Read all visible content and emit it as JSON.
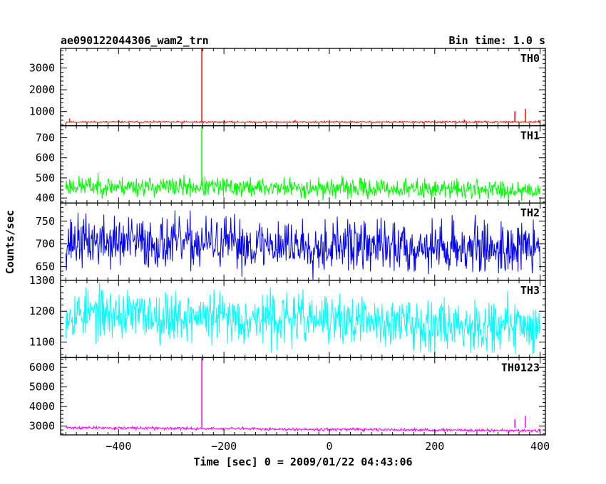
{
  "header": {
    "title": "ae090122044306_wam2_trn",
    "bin_time": "Bin time: 1.0 s"
  },
  "chart_data": {
    "type": "line",
    "shared_x": {
      "label": "Time [sec] 0 = 2009/01/22 04:43:06",
      "range": [
        -510,
        410
      ],
      "ticks": [
        -400,
        -200,
        0,
        200,
        400
      ],
      "tick_labels": [
        "−400",
        "−200",
        "0",
        "200",
        "400"
      ]
    },
    "ylabel": "Counts/sec",
    "panels": [
      {
        "name": "TH0",
        "color": "#ff0000",
        "ylim": [
          350,
          3900
        ],
        "yticks": [
          1000,
          2000,
          3000
        ],
        "baseline": 520,
        "noise": 18,
        "x_start": -500,
        "x_end": 400,
        "seed": 11,
        "spikes": [
          {
            "x": -242,
            "y": 3900
          },
          {
            "x": -493,
            "y": 680
          },
          {
            "x": 352,
            "y": 1010
          },
          {
            "x": 372,
            "y": 1120
          },
          {
            "x": 256,
            "y": 640
          },
          {
            "x": -65,
            "y": 610
          }
        ]
      },
      {
        "name": "TH1",
        "color": "#00ff00",
        "ylim": [
          375,
          760
        ],
        "yticks": [
          400,
          500,
          600,
          700
        ],
        "baseline": 460,
        "trend_end": 440,
        "noise": 24,
        "x_start": -500,
        "x_end": 400,
        "seed": 23,
        "spikes": [
          {
            "x": -242,
            "y": 760
          }
        ]
      },
      {
        "name": "TH2",
        "color": "#0000ff",
        "ylim": [
          620,
          790
        ],
        "yticks": [
          650,
          700,
          750
        ],
        "baseline": 705,
        "trend_end": 690,
        "noise": 28,
        "x_start": -500,
        "x_end": 400,
        "seed": 37,
        "spikes": []
      },
      {
        "name": "TH3",
        "color": "#00ffff",
        "ylim": [
          1050,
          1300
        ],
        "yticks": [
          1100,
          1200,
          1300
        ],
        "baseline": 1195,
        "trend_end": 1150,
        "noise": 40,
        "x_start": -500,
        "x_end": 400,
        "seed": 53,
        "spikes": []
      },
      {
        "name": "TH0123",
        "color": "#ff00ff",
        "ylim": [
          2550,
          6500
        ],
        "yticks": [
          3000,
          4000,
          5000,
          6000
        ],
        "baseline": 2920,
        "trend_end": 2760,
        "noise": 35,
        "x_start": -500,
        "x_end": 400,
        "seed": 71,
        "spikes": [
          {
            "x": -242,
            "y": 6500
          },
          {
            "x": 352,
            "y": 3350
          },
          {
            "x": 372,
            "y": 3520
          }
        ]
      }
    ]
  }
}
